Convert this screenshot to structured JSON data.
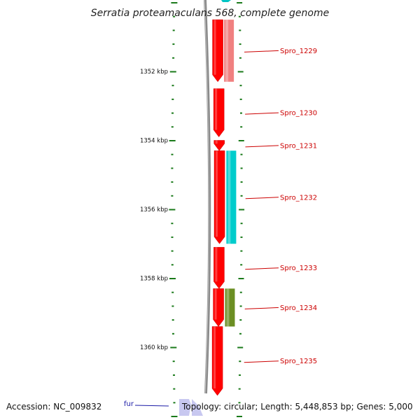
{
  "title": "Serratia proteamaculans 568, complete genome",
  "scale_labels": [
    {
      "text": "1352 kbp",
      "kbp": 1352
    },
    {
      "text": "1354 kbp",
      "kbp": 1354
    },
    {
      "text": "1356 kbp",
      "kbp": 1356
    },
    {
      "text": "1358 kbp",
      "kbp": 1358
    },
    {
      "text": "1360 kbp",
      "kbp": 1360
    }
  ],
  "genes": [
    {
      "label": "Spro_1229",
      "start_kbp": 1350.5,
      "end_kbp": 1352.3,
      "color": "#ff0000",
      "strand": "reverse",
      "cog_color": "#f08080"
    },
    {
      "label": "Spro_1230",
      "start_kbp": 1352.5,
      "end_kbp": 1353.9,
      "color": "#ff0000",
      "strand": "reverse"
    },
    {
      "label": "Spro_1231",
      "start_kbp": 1354.0,
      "end_kbp": 1354.3,
      "color": "#ff0000",
      "strand": "reverse"
    },
    {
      "label": "Spro_1232",
      "start_kbp": 1354.3,
      "end_kbp": 1357.0,
      "color": "#ff0000",
      "strand": "reverse",
      "cog_color": "#00cccc"
    },
    {
      "label": "Spro_1233",
      "start_kbp": 1357.1,
      "end_kbp": 1358.3,
      "color": "#ff0000",
      "strand": "reverse"
    },
    {
      "label": "Spro_1234",
      "start_kbp": 1358.3,
      "end_kbp": 1359.4,
      "color": "#ff0000",
      "strand": "reverse",
      "cog_color": "#6b8e23"
    },
    {
      "label": "Spro_1235",
      "start_kbp": 1359.4,
      "end_kbp": 1361.4,
      "color": "#ff0000",
      "strand": "reverse"
    },
    {
      "label": "fur",
      "start_kbp": 1361.5,
      "end_kbp": 1362.0,
      "color": "#c8c8f0",
      "strand": "forward"
    }
  ],
  "footer": {
    "accession": "Accession: NC_009832",
    "summary": "Topology: circular; Length: 5,448,853 bp; Genes: 5,000"
  }
}
